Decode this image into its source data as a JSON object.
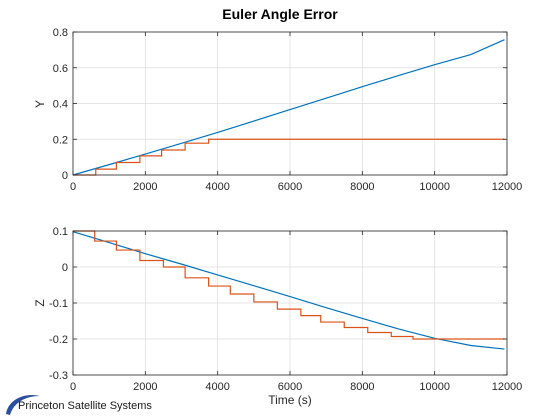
{
  "figure": {
    "logo_text": "Princeton Satellite Systems",
    "colors": {
      "series1": "#0072BD",
      "series2": "#D95319",
      "logo": "#2a4f9c"
    }
  },
  "chart_data": [
    {
      "type": "line",
      "title": "Euler Angle Error",
      "xlabel": "",
      "ylabel": "Y",
      "xlim": [
        0,
        12000
      ],
      "ylim": [
        0,
        0.8
      ],
      "xticks": [
        0,
        2000,
        4000,
        6000,
        8000,
        10000,
        12000
      ],
      "yticks": [
        0,
        0.2,
        0.4,
        0.6,
        0.8
      ],
      "xtick_labels": [
        "0",
        "2000",
        "4000",
        "6000",
        "8000",
        "10000",
        "12000"
      ],
      "ytick_labels": [
        "0",
        "0.2",
        "0.4",
        "0.6",
        "0.8"
      ],
      "grid": true,
      "series": [
        {
          "color": "#0072BD",
          "x": [
            0,
            1000,
            2000,
            3000,
            4000,
            5000,
            6000,
            7000,
            8000,
            9000,
            10000,
            11000,
            11930
          ],
          "y": [
            0,
            0.058,
            0.117,
            0.177,
            0.238,
            0.302,
            0.366,
            0.43,
            0.494,
            0.556,
            0.617,
            0.674,
            0.757
          ]
        },
        {
          "color": "#D95319",
          "x": [
            0,
            630,
            630,
            1200,
            1200,
            1850,
            1850,
            2450,
            2450,
            3100,
            3100,
            3750,
            3750,
            11930
          ],
          "y": [
            0,
            0,
            0.033,
            0.033,
            0.07,
            0.07,
            0.107,
            0.107,
            0.14,
            0.14,
            0.178,
            0.178,
            0.2,
            0.2
          ]
        }
      ]
    },
    {
      "type": "line",
      "title": "",
      "xlabel": "Time (s)",
      "ylabel": "Z",
      "xlim": [
        0,
        12000
      ],
      "ylim": [
        -0.3,
        0.1
      ],
      "xticks": [
        0,
        2000,
        4000,
        6000,
        8000,
        10000,
        12000
      ],
      "yticks": [
        -0.3,
        -0.2,
        -0.1,
        0,
        0.1
      ],
      "xtick_labels": [
        "0",
        "2000",
        "4000",
        "6000",
        "8000",
        "10000",
        "12000"
      ],
      "ytick_labels": [
        "-0.3",
        "-0.2",
        "-0.1",
        "0",
        "0.1"
      ],
      "grid": true,
      "series": [
        {
          "color": "#0072BD",
          "x": [
            0,
            1000,
            2000,
            3000,
            4000,
            5000,
            6000,
            7000,
            8000,
            9000,
            10000,
            11000,
            11930
          ],
          "y": [
            0.098,
            0.068,
            0.037,
            0.008,
            -0.022,
            -0.052,
            -0.082,
            -0.113,
            -0.143,
            -0.172,
            -0.198,
            -0.218,
            -0.228
          ]
        },
        {
          "color": "#D95319",
          "x": [
            0,
            600,
            600,
            1200,
            1200,
            1850,
            1850,
            2500,
            2500,
            3100,
            3100,
            3750,
            3750,
            4350,
            4350,
            5000,
            5000,
            5650,
            5650,
            6300,
            6300,
            6850,
            6850,
            7500,
            7500,
            8150,
            8150,
            8800,
            8800,
            9400,
            9400,
            11930
          ],
          "y": [
            0.1,
            0.1,
            0.072,
            0.072,
            0.047,
            0.047,
            0.018,
            0.018,
            0.0,
            0.0,
            -0.03,
            -0.03,
            -0.053,
            -0.053,
            -0.075,
            -0.075,
            -0.097,
            -0.097,
            -0.117,
            -0.117,
            -0.135,
            -0.135,
            -0.153,
            -0.153,
            -0.168,
            -0.168,
            -0.182,
            -0.182,
            -0.193,
            -0.193,
            -0.2,
            -0.2
          ]
        }
      ]
    }
  ]
}
